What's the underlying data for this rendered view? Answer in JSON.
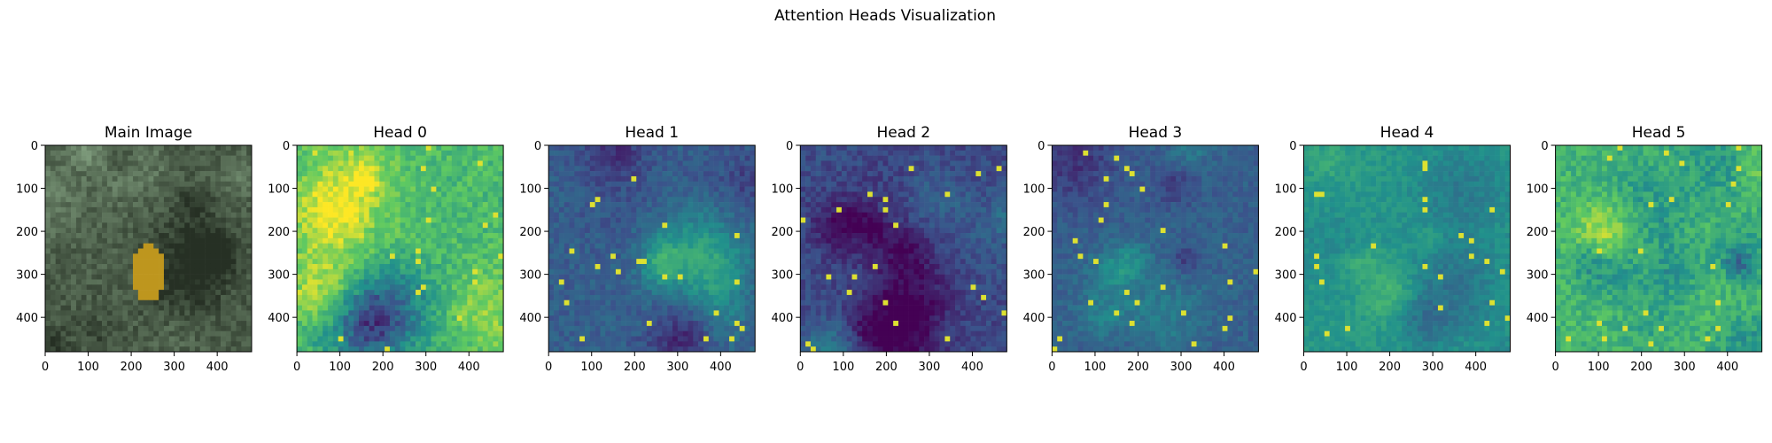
{
  "chart_data": {
    "type": "heatmap",
    "title": "Attention Heads Visualization",
    "panels": [
      {
        "title": "Main Image",
        "kind": "photo",
        "seed": 11
      },
      {
        "title": "Head 0",
        "kind": "heatmap",
        "seed": 101,
        "bias": 0.68,
        "contrast": 0.85
      },
      {
        "title": "Head 1",
        "kind": "heatmap",
        "seed": 202,
        "bias": 0.3,
        "contrast": 0.55
      },
      {
        "title": "Head 2",
        "kind": "heatmap",
        "seed": 303,
        "bias": 0.22,
        "contrast": 0.6
      },
      {
        "title": "Head 3",
        "kind": "heatmap",
        "seed": 404,
        "bias": 0.3,
        "contrast": 0.5
      },
      {
        "title": "Head 4",
        "kind": "heatmap",
        "seed": 505,
        "bias": 0.52,
        "contrast": 0.45
      },
      {
        "title": "Head 5",
        "kind": "heatmap",
        "seed": 606,
        "bias": 0.66,
        "contrast": 0.85
      }
    ],
    "xlim": [
      0,
      480
    ],
    "ylim": [
      480,
      0
    ],
    "xticks": [
      0,
      100,
      200,
      300,
      400
    ],
    "yticks": [
      0,
      100,
      200,
      300,
      400
    ],
    "grid": false,
    "colormap": "viridis",
    "colors": {
      "low": "#440154",
      "mid_low": "#31688e",
      "mid": "#21918c",
      "mid_high": "#5ec962",
      "high": "#fde725"
    }
  }
}
